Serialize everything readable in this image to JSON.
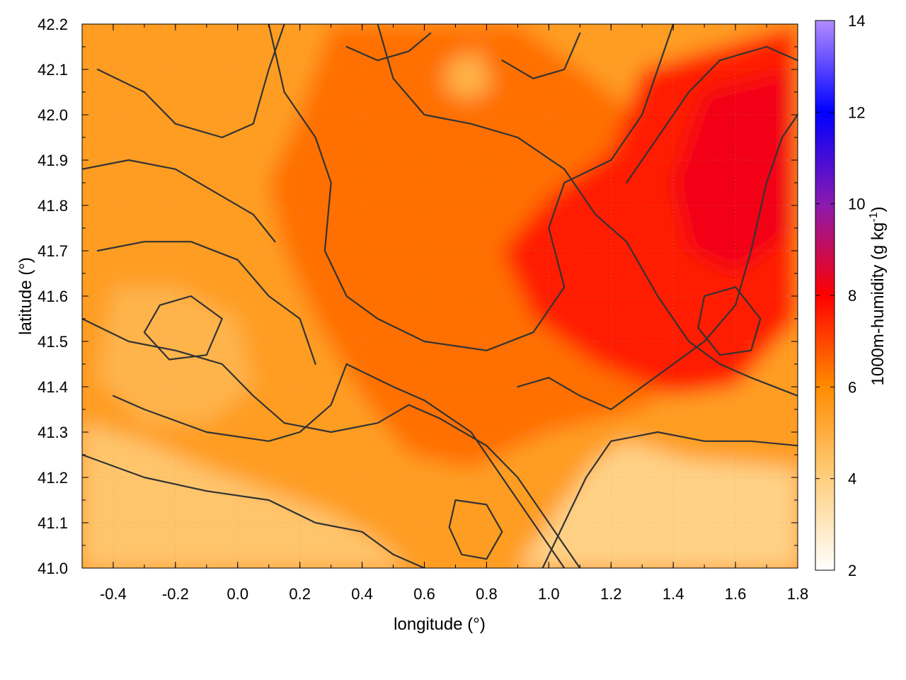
{
  "chart_data": {
    "type": "heatmap",
    "title": "",
    "xlabel": "longitude (°)",
    "ylabel": "latitude (°)",
    "colorbar_label": "1000m-humidity (g kg⁻¹)",
    "colorbar_label_parts": {
      "main": "1000m-humidity (g kg",
      "sup": "-1",
      "close": ")"
    },
    "xlim": [
      -0.5,
      1.8
    ],
    "ylim": [
      41.0,
      42.2
    ],
    "clim": [
      2,
      14
    ],
    "x_ticks": [
      "-0.4",
      "-0.2",
      "0.0",
      "0.2",
      "0.4",
      "0.6",
      "0.8",
      "1.0",
      "1.2",
      "1.4",
      "1.6",
      "1.8"
    ],
    "x_tick_values": [
      -0.4,
      -0.2,
      0.0,
      0.2,
      0.4,
      0.6,
      0.8,
      1.0,
      1.2,
      1.4,
      1.6,
      1.8
    ],
    "y_ticks": [
      "41.0",
      "41.1",
      "41.2",
      "41.3",
      "41.4",
      "41.5",
      "41.6",
      "41.7",
      "41.8",
      "41.9",
      "42.0",
      "42.1",
      "42.2"
    ],
    "y_tick_values": [
      41.0,
      41.1,
      41.2,
      41.3,
      41.4,
      41.5,
      41.6,
      41.7,
      41.8,
      41.9,
      42.0,
      42.1,
      42.2
    ],
    "colorbar_ticks": [
      "2",
      "4",
      "6",
      "8",
      "10",
      "12",
      "14"
    ],
    "colorbar_tick_values": [
      2,
      4,
      6,
      8,
      10,
      12,
      14
    ],
    "colormap": [
      {
        "value": 2,
        "color": "#ffffff"
      },
      {
        "value": 4,
        "color": "#ffcf7f"
      },
      {
        "value": 6,
        "color": "#ff8c00"
      },
      {
        "value": 8,
        "color": "#ff0000"
      },
      {
        "value": 10,
        "color": "#8a1ab0"
      },
      {
        "value": 12,
        "color": "#0000ff"
      },
      {
        "value": 14,
        "color": "#b38cff"
      }
    ],
    "contour_color": "#333333",
    "grid": "dotted",
    "humidity_regions": [
      {
        "name": "background",
        "value": 5.5
      },
      {
        "name": "south-coast-light",
        "value": 4.3,
        "points": [
          [
            -0.5,
            41.0
          ],
          [
            -0.5,
            41.32
          ],
          [
            -0.3,
            41.28
          ],
          [
            -0.1,
            41.22
          ],
          [
            0.1,
            41.17
          ],
          [
            0.3,
            41.12
          ],
          [
            0.45,
            41.06
          ],
          [
            0.55,
            41.0
          ]
        ]
      },
      {
        "name": "southeast-light",
        "value": 3.9,
        "points": [
          [
            0.9,
            41.0
          ],
          [
            1.02,
            41.12
          ],
          [
            1.15,
            41.24
          ],
          [
            1.25,
            41.28
          ],
          [
            1.45,
            41.24
          ],
          [
            1.8,
            41.22
          ],
          [
            1.8,
            41.0
          ]
        ]
      },
      {
        "name": "west-mid-light",
        "value": 4.8,
        "points": [
          [
            -0.4,
            41.62
          ],
          [
            -0.2,
            41.62
          ],
          [
            0.0,
            41.55
          ],
          [
            0.05,
            41.4
          ],
          [
            -0.1,
            41.32
          ],
          [
            -0.3,
            41.32
          ],
          [
            -0.45,
            41.42
          ]
        ]
      },
      {
        "name": "central-band",
        "value": 6.4,
        "points": [
          [
            0.3,
            42.2
          ],
          [
            0.9,
            42.2
          ],
          [
            1.2,
            42.05
          ],
          [
            1.5,
            41.8
          ],
          [
            1.6,
            41.5
          ],
          [
            1.3,
            41.35
          ],
          [
            1.0,
            41.3
          ],
          [
            0.75,
            41.22
          ],
          [
            0.55,
            41.25
          ],
          [
            0.4,
            41.38
          ],
          [
            0.25,
            41.55
          ],
          [
            0.15,
            41.7
          ],
          [
            0.1,
            41.85
          ],
          [
            0.2,
            42.0
          ]
        ]
      },
      {
        "name": "northeast-core",
        "value": 7.6,
        "points": [
          [
            1.3,
            42.1
          ],
          [
            1.8,
            42.2
          ],
          [
            1.8,
            41.55
          ],
          [
            1.6,
            41.4
          ],
          [
            1.4,
            41.38
          ],
          [
            1.15,
            41.45
          ],
          [
            0.95,
            41.55
          ],
          [
            0.85,
            41.7
          ],
          [
            1.0,
            41.82
          ],
          [
            1.2,
            41.92
          ]
        ]
      },
      {
        "name": "east-max",
        "value": 8.2,
        "points": [
          [
            1.5,
            42.05
          ],
          [
            1.8,
            42.1
          ],
          [
            1.8,
            41.75
          ],
          [
            1.6,
            41.65
          ],
          [
            1.45,
            41.7
          ],
          [
            1.4,
            41.85
          ]
        ]
      },
      {
        "name": "north-pocket-light",
        "value": 4.9,
        "points": [
          [
            0.68,
            42.12
          ],
          [
            0.78,
            42.14
          ],
          [
            0.82,
            42.06
          ],
          [
            0.74,
            42.03
          ],
          [
            0.66,
            42.06
          ]
        ]
      }
    ],
    "contours": [
      [
        [
          -0.4,
          41.38
        ],
        [
          -0.3,
          41.35
        ],
        [
          -0.1,
          41.3
        ],
        [
          0.1,
          41.28
        ],
        [
          0.2,
          41.3
        ],
        [
          0.3,
          41.36
        ],
        [
          0.35,
          41.45
        ],
        [
          0.5,
          41.4
        ],
        [
          0.6,
          41.37
        ],
        [
          0.75,
          41.3
        ],
        [
          0.85,
          41.2
        ],
        [
          0.95,
          41.1
        ],
        [
          1.05,
          41.0
        ]
      ],
      [
        [
          -0.5,
          41.55
        ],
        [
          -0.35,
          41.5
        ],
        [
          -0.2,
          41.48
        ],
        [
          -0.05,
          41.45
        ],
        [
          0.05,
          41.38
        ],
        [
          0.15,
          41.32
        ],
        [
          0.3,
          41.3
        ],
        [
          0.45,
          41.32
        ],
        [
          0.55,
          41.36
        ],
        [
          0.65,
          41.33
        ],
        [
          0.8,
          41.27
        ],
        [
          0.9,
          41.2
        ],
        [
          1.0,
          41.1
        ],
        [
          1.1,
          41.0
        ]
      ],
      [
        [
          -0.5,
          41.25
        ],
        [
          -0.3,
          41.2
        ],
        [
          -0.1,
          41.17
        ],
        [
          0.1,
          41.15
        ],
        [
          0.25,
          41.1
        ],
        [
          0.4,
          41.08
        ],
        [
          0.5,
          41.03
        ],
        [
          0.6,
          41.0
        ]
      ],
      [
        [
          0.1,
          42.2
        ],
        [
          0.15,
          42.05
        ],
        [
          0.25,
          41.95
        ],
        [
          0.3,
          41.85
        ],
        [
          0.28,
          41.7
        ],
        [
          0.35,
          41.6
        ],
        [
          0.45,
          41.55
        ],
        [
          0.6,
          41.5
        ],
        [
          0.8,
          41.48
        ],
        [
          0.95,
          41.52
        ],
        [
          1.05,
          41.62
        ],
        [
          1.0,
          41.75
        ],
        [
          1.05,
          41.85
        ],
        [
          1.2,
          41.9
        ],
        [
          1.3,
          42.0
        ],
        [
          1.35,
          42.1
        ],
        [
          1.4,
          42.2
        ]
      ],
      [
        [
          0.45,
          42.2
        ],
        [
          0.5,
          42.08
        ],
        [
          0.6,
          42.0
        ],
        [
          0.75,
          41.98
        ],
        [
          0.9,
          41.95
        ],
        [
          1.05,
          41.88
        ],
        [
          1.15,
          41.78
        ],
        [
          1.25,
          41.72
        ],
        [
          1.35,
          41.6
        ],
        [
          1.45,
          41.5
        ],
        [
          1.55,
          41.45
        ],
        [
          1.65,
          41.42
        ],
        [
          1.8,
          41.38
        ]
      ],
      [
        [
          0.98,
          41.0
        ],
        [
          1.05,
          41.1
        ],
        [
          1.12,
          41.2
        ],
        [
          1.2,
          41.28
        ],
        [
          1.35,
          41.3
        ],
        [
          1.5,
          41.28
        ],
        [
          1.65,
          41.28
        ],
        [
          1.8,
          41.27
        ]
      ],
      [
        [
          1.25,
          41.85
        ],
        [
          1.35,
          41.95
        ],
        [
          1.45,
          42.05
        ],
        [
          1.55,
          42.12
        ],
        [
          1.7,
          42.15
        ],
        [
          1.8,
          42.12
        ]
      ],
      [
        [
          -0.45,
          41.7
        ],
        [
          -0.3,
          41.72
        ],
        [
          -0.15,
          41.72
        ],
        [
          0.0,
          41.68
        ],
        [
          0.1,
          41.6
        ],
        [
          0.2,
          41.55
        ],
        [
          0.25,
          41.45
        ]
      ],
      [
        [
          -0.5,
          41.88
        ],
        [
          -0.35,
          41.9
        ],
        [
          -0.2,
          41.88
        ],
        [
          -0.05,
          41.82
        ],
        [
          0.05,
          41.78
        ],
        [
          0.12,
          41.72
        ]
      ],
      [
        [
          -0.45,
          42.1
        ],
        [
          -0.3,
          42.05
        ],
        [
          -0.2,
          41.98
        ],
        [
          -0.05,
          41.95
        ],
        [
          0.05,
          41.98
        ],
        [
          0.1,
          42.1
        ],
        [
          0.15,
          42.2
        ]
      ],
      [
        [
          0.9,
          41.4
        ],
        [
          1.0,
          41.42
        ],
        [
          1.1,
          41.38
        ],
        [
          1.2,
          41.35
        ],
        [
          1.3,
          41.4
        ],
        [
          1.4,
          41.45
        ],
        [
          1.5,
          41.5
        ],
        [
          1.6,
          41.58
        ],
        [
          1.65,
          41.7
        ],
        [
          1.7,
          41.85
        ],
        [
          1.75,
          41.95
        ],
        [
          1.8,
          42.0
        ]
      ],
      [
        [
          0.35,
          42.15
        ],
        [
          0.45,
          42.12
        ],
        [
          0.55,
          42.14
        ],
        [
          0.62,
          42.18
        ]
      ],
      [
        [
          0.85,
          42.12
        ],
        [
          0.95,
          42.08
        ],
        [
          1.05,
          42.1
        ],
        [
          1.1,
          42.18
        ]
      ],
      [
        [
          1.5,
          41.6
        ],
        [
          1.6,
          41.62
        ],
        [
          1.68,
          41.55
        ],
        [
          1.65,
          41.48
        ],
        [
          1.55,
          41.47
        ],
        [
          1.48,
          41.53
        ],
        [
          1.5,
          41.6
        ]
      ],
      [
        [
          -0.25,
          41.58
        ],
        [
          -0.15,
          41.6
        ],
        [
          -0.05,
          41.55
        ],
        [
          -0.1,
          41.47
        ],
        [
          -0.22,
          41.46
        ],
        [
          -0.3,
          41.52
        ],
        [
          -0.25,
          41.58
        ]
      ],
      [
        [
          0.7,
          41.15
        ],
        [
          0.8,
          41.14
        ],
        [
          0.85,
          41.08
        ],
        [
          0.8,
          41.02
        ],
        [
          0.72,
          41.03
        ],
        [
          0.68,
          41.09
        ],
        [
          0.7,
          41.15
        ]
      ]
    ]
  }
}
